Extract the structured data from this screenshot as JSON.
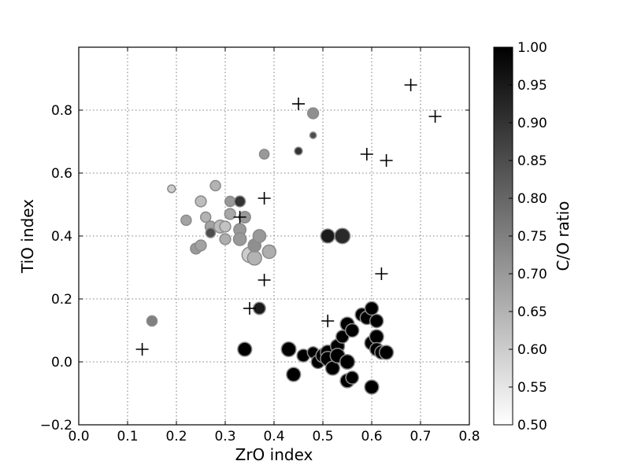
{
  "chart_data": {
    "type": "scatter",
    "title": "",
    "xlabel": "ZrO index",
    "ylabel": "TiO index",
    "xlim": [
      0.0,
      0.8
    ],
    "ylim": [
      -0.2,
      1.0
    ],
    "xticks": [
      "0.0",
      "0.1",
      "0.2",
      "0.3",
      "0.4",
      "0.5",
      "0.6",
      "0.7",
      "0.8"
    ],
    "yticks": [
      "−0.2",
      "0.0",
      "0.2",
      "0.4",
      "0.6",
      "0.8"
    ],
    "grid": true,
    "colorbar": {
      "label": "C/O ratio",
      "range": [
        0.5,
        1.0
      ],
      "ticks": [
        "0.50",
        "0.55",
        "0.60",
        "0.65",
        "0.70",
        "0.75",
        "0.80",
        "0.85",
        "0.90",
        "0.95",
        "1.00"
      ],
      "colormap": "gray_reversed"
    },
    "circles": [
      {
        "x": 0.15,
        "y": 0.13,
        "c": 0.75,
        "s": 0.5
      },
      {
        "x": 0.19,
        "y": 0.55,
        "c": 0.6,
        "s": 0.3
      },
      {
        "x": 0.22,
        "y": 0.45,
        "c": 0.68,
        "s": 0.5
      },
      {
        "x": 0.24,
        "y": 0.36,
        "c": 0.7,
        "s": 0.55
      },
      {
        "x": 0.25,
        "y": 0.37,
        "c": 0.68,
        "s": 0.55
      },
      {
        "x": 0.25,
        "y": 0.51,
        "c": 0.63,
        "s": 0.55
      },
      {
        "x": 0.26,
        "y": 0.46,
        "c": 0.65,
        "s": 0.5
      },
      {
        "x": 0.27,
        "y": 0.43,
        "c": 0.68,
        "s": 0.55
      },
      {
        "x": 0.27,
        "y": 0.41,
        "c": 0.85,
        "s": 0.45
      },
      {
        "x": 0.28,
        "y": 0.56,
        "c": 0.65,
        "s": 0.5
      },
      {
        "x": 0.29,
        "y": 0.43,
        "c": 0.63,
        "s": 0.7
      },
      {
        "x": 0.3,
        "y": 0.39,
        "c": 0.66,
        "s": 0.55
      },
      {
        "x": 0.3,
        "y": 0.43,
        "c": 0.62,
        "s": 0.55
      },
      {
        "x": 0.31,
        "y": 0.51,
        "c": 0.7,
        "s": 0.5
      },
      {
        "x": 0.31,
        "y": 0.47,
        "c": 0.67,
        "s": 0.55
      },
      {
        "x": 0.33,
        "y": 0.51,
        "c": 0.9,
        "s": 0.55
      },
      {
        "x": 0.33,
        "y": 0.42,
        "c": 0.7,
        "s": 0.65
      },
      {
        "x": 0.33,
        "y": 0.39,
        "c": 0.7,
        "s": 0.7
      },
      {
        "x": 0.34,
        "y": 0.46,
        "c": 0.7,
        "s": 0.6
      },
      {
        "x": 0.35,
        "y": 0.34,
        "c": 0.6,
        "s": 0.9
      },
      {
        "x": 0.36,
        "y": 0.33,
        "c": 0.65,
        "s": 0.8
      },
      {
        "x": 0.36,
        "y": 0.37,
        "c": 0.72,
        "s": 0.7
      },
      {
        "x": 0.37,
        "y": 0.4,
        "c": 0.7,
        "s": 0.7
      },
      {
        "x": 0.38,
        "y": 0.66,
        "c": 0.7,
        "s": 0.45
      },
      {
        "x": 0.39,
        "y": 0.35,
        "c": 0.66,
        "s": 0.75
      },
      {
        "x": 0.37,
        "y": 0.17,
        "c": 0.95,
        "s": 0.65
      },
      {
        "x": 0.34,
        "y": 0.04,
        "c": 1.0,
        "s": 0.8
      },
      {
        "x": 0.45,
        "y": 0.67,
        "c": 0.9,
        "s": 0.3
      },
      {
        "x": 0.48,
        "y": 0.72,
        "c": 0.85,
        "s": 0.2
      },
      {
        "x": 0.48,
        "y": 0.79,
        "c": 0.72,
        "s": 0.55
      },
      {
        "x": 0.51,
        "y": 0.4,
        "c": 0.95,
        "s": 0.8
      },
      {
        "x": 0.54,
        "y": 0.4,
        "c": 0.92,
        "s": 0.9
      },
      {
        "x": 0.43,
        "y": 0.04,
        "c": 1.0,
        "s": 0.85
      },
      {
        "x": 0.44,
        "y": -0.04,
        "c": 1.0,
        "s": 0.8
      },
      {
        "x": 0.46,
        "y": 0.02,
        "c": 1.0,
        "s": 0.7
      },
      {
        "x": 0.48,
        "y": 0.03,
        "c": 1.0,
        "s": 0.6
      },
      {
        "x": 0.49,
        "y": 0.0,
        "c": 1.0,
        "s": 0.75
      },
      {
        "x": 0.5,
        "y": 0.02,
        "c": 1.0,
        "s": 0.8
      },
      {
        "x": 0.51,
        "y": 0.03,
        "c": 1.0,
        "s": 0.85
      },
      {
        "x": 0.51,
        "y": 0.01,
        "c": 1.0,
        "s": 0.85
      },
      {
        "x": 0.52,
        "y": -0.02,
        "c": 1.0,
        "s": 0.8
      },
      {
        "x": 0.53,
        "y": 0.05,
        "c": 1.0,
        "s": 0.8
      },
      {
        "x": 0.53,
        "y": 0.02,
        "c": 1.0,
        "s": 0.85
      },
      {
        "x": 0.54,
        "y": 0.08,
        "c": 1.0,
        "s": 0.7
      },
      {
        "x": 0.55,
        "y": 0.12,
        "c": 1.0,
        "s": 0.8
      },
      {
        "x": 0.55,
        "y": 0.0,
        "c": 1.0,
        "s": 0.85
      },
      {
        "x": 0.55,
        "y": -0.06,
        "c": 1.0,
        "s": 0.8
      },
      {
        "x": 0.56,
        "y": -0.05,
        "c": 1.0,
        "s": 0.7
      },
      {
        "x": 0.56,
        "y": 0.1,
        "c": 1.0,
        "s": 0.75
      },
      {
        "x": 0.58,
        "y": 0.15,
        "c": 1.0,
        "s": 0.75
      },
      {
        "x": 0.59,
        "y": 0.14,
        "c": 1.0,
        "s": 0.75
      },
      {
        "x": 0.6,
        "y": 0.17,
        "c": 1.0,
        "s": 0.75
      },
      {
        "x": 0.6,
        "y": 0.06,
        "c": 1.0,
        "s": 0.8
      },
      {
        "x": 0.6,
        "y": -0.08,
        "c": 1.0,
        "s": 0.8
      },
      {
        "x": 0.61,
        "y": 0.13,
        "c": 1.0,
        "s": 0.75
      },
      {
        "x": 0.61,
        "y": 0.08,
        "c": 1.0,
        "s": 0.8
      },
      {
        "x": 0.61,
        "y": 0.04,
        "c": 1.0,
        "s": 0.75
      },
      {
        "x": 0.62,
        "y": 0.03,
        "c": 1.0,
        "s": 0.75
      },
      {
        "x": 0.63,
        "y": 0.03,
        "c": 1.0,
        "s": 0.8
      }
    ],
    "crosses": [
      {
        "x": 0.13,
        "y": 0.04
      },
      {
        "x": 0.33,
        "y": 0.46
      },
      {
        "x": 0.35,
        "y": 0.17
      },
      {
        "x": 0.38,
        "y": 0.52
      },
      {
        "x": 0.38,
        "y": 0.26
      },
      {
        "x": 0.45,
        "y": 0.82
      },
      {
        "x": 0.51,
        "y": 0.13
      },
      {
        "x": 0.59,
        "y": 0.66
      },
      {
        "x": 0.62,
        "y": 0.28
      },
      {
        "x": 0.63,
        "y": 0.64
      },
      {
        "x": 0.68,
        "y": 0.88
      },
      {
        "x": 0.73,
        "y": 0.78
      }
    ]
  }
}
